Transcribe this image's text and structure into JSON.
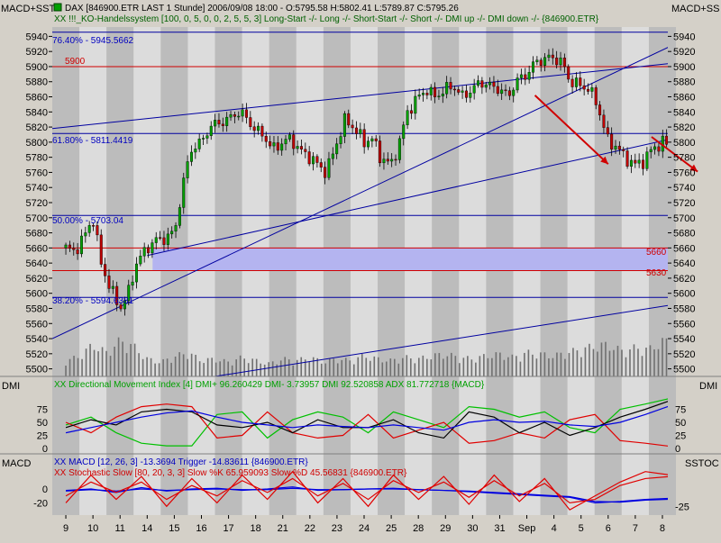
{
  "window": {
    "corner_left_top": "MACD+SST",
    "corner_right_top": "MACD+SS",
    "icon": "green-square-icon",
    "header_line1": "DAX [846900.ETR LAST 1 Stunde] 2006/09/08 18:00 - O:5795.58 H:5802.41 L:5789.87 C:5795.26",
    "header_line2": "XX !!!_KO-Handelssystem [100, 0, 5, 0, 0, 2, 5, 5, 3] Long-Start -/- Long -/- Short-Start -/- Short -/- DMI up -/- DMI down -/- {846900.ETR}"
  },
  "panels": {
    "dmi": {
      "label_left": "DMI",
      "label_right": "DMI",
      "legend": "XX Directional Movement Index [4] DMI+ 96.260429 DMI- 3.73957 DMI 92.520858 ADX 81.772718 {MACD}"
    },
    "macd": {
      "label_left": "MACD",
      "label_right": "SSTOC",
      "legend1": "XX MACD [12, 26, 3] -13.3694 Trigger -14.83611 {846900.ETR}",
      "legend2": "XX Stochastic Slow [80, 20, 3, 3] Slow %K 65.959093 Slow %D 45.56831 {846900.ETR}"
    }
  },
  "annotations": {
    "fib_7640": "76.40% - 5945.5662",
    "fib_6180": "61.80% - 5811.4419",
    "fib_5000": "50.00% - 5703.04",
    "fib_3820": "38.20% - 5594.6381",
    "level_5900": "5900",
    "level_5660": "5660",
    "level_5630": "5630"
  },
  "colors": {
    "background": "#d4d0c8",
    "stripe_dark": "#bcbcbc",
    "stripe_light": "#dcdcdc",
    "up_candle": "#00a000",
    "down_candle": "#c00000",
    "trend_line": "#0000a0",
    "fib_text": "#0000c0",
    "red_line": "#d00000",
    "zone_fill": "#b4b4f0",
    "dmi_plus": "#00c000",
    "dmi_minus": "#e00000",
    "adx": "#0000e0",
    "dmi_line": "#000000",
    "macd": "#0000e0",
    "stoch": "#e00000"
  },
  "chart_data": [
    {
      "type": "candlestick",
      "title": "DAX [846900.ETR LAST 1 Stunde]",
      "ylim": [
        5490,
        5950
      ],
      "y_ticks": [
        5940,
        5920,
        5900,
        5880,
        5860,
        5840,
        5820,
        5800,
        5780,
        5760,
        5740,
        5720,
        5700,
        5680,
        5660,
        5640,
        5620,
        5600,
        5580,
        5560,
        5540,
        5520,
        5500
      ],
      "x_tick_labels": [
        "9",
        "10",
        "11",
        "14",
        "15",
        "16",
        "17",
        "18",
        "21",
        "22",
        "23",
        "24",
        "25",
        "28",
        "29",
        "30",
        "31",
        "Sep",
        "4",
        "5",
        "6",
        "7",
        "8"
      ],
      "close_path": [
        [
          0,
          5660
        ],
        [
          0.3,
          5655
        ],
        [
          0.6,
          5670
        ],
        [
          1.0,
          5700
        ],
        [
          1.3,
          5640
        ],
        [
          1.6,
          5610
        ],
        [
          2.0,
          5580
        ],
        [
          2.3,
          5600
        ],
        [
          2.6,
          5640
        ],
        [
          3.0,
          5660
        ],
        [
          3.3,
          5670
        ],
        [
          3.6,
          5672
        ],
        [
          4.0,
          5680
        ],
        [
          4.3,
          5740
        ],
        [
          4.6,
          5790
        ],
        [
          5.0,
          5800
        ],
        [
          5.3,
          5820
        ],
        [
          5.6,
          5825
        ],
        [
          6.0,
          5830
        ],
        [
          6.3,
          5840
        ],
        [
          6.6,
          5835
        ],
        [
          7.0,
          5815
        ],
        [
          7.3,
          5810
        ],
        [
          7.6,
          5790
        ],
        [
          8.0,
          5800
        ],
        [
          8.3,
          5805
        ],
        [
          8.6,
          5790
        ],
        [
          9.0,
          5780
        ],
        [
          9.3,
          5770
        ],
        [
          9.6,
          5760
        ],
        [
          10.0,
          5800
        ],
        [
          10.3,
          5830
        ],
        [
          10.6,
          5820
        ],
        [
          11.0,
          5800
        ],
        [
          11.3,
          5805
        ],
        [
          11.6,
          5780
        ],
        [
          12.0,
          5770
        ],
        [
          12.3,
          5800
        ],
        [
          12.6,
          5840
        ],
        [
          13.0,
          5860
        ],
        [
          13.3,
          5870
        ],
        [
          13.6,
          5860
        ],
        [
          14.0,
          5870
        ],
        [
          14.3,
          5875
        ],
        [
          14.6,
          5860
        ],
        [
          15.0,
          5870
        ],
        [
          15.3,
          5880
        ],
        [
          15.6,
          5875
        ],
        [
          16.0,
          5870
        ],
        [
          16.3,
          5860
        ],
        [
          16.6,
          5880
        ],
        [
          17.0,
          5890
        ],
        [
          17.3,
          5905
        ],
        [
          17.6,
          5910
        ],
        [
          18.0,
          5912
        ],
        [
          18.3,
          5905
        ],
        [
          18.6,
          5880
        ],
        [
          19.0,
          5875
        ],
        [
          19.3,
          5870
        ],
        [
          19.6,
          5850
        ],
        [
          20.0,
          5800
        ],
        [
          20.3,
          5795
        ],
        [
          20.6,
          5780
        ],
        [
          21.0,
          5770
        ],
        [
          21.3,
          5775
        ],
        [
          21.6,
          5790
        ],
        [
          22.0,
          5800
        ],
        [
          22.3,
          5795
        ]
      ],
      "volume_path": [
        [
          0,
          20
        ],
        [
          0.5,
          25
        ],
        [
          1.0,
          40
        ],
        [
          1.5,
          30
        ],
        [
          2.0,
          45
        ],
        [
          2.5,
          38
        ],
        [
          3.0,
          22
        ],
        [
          3.5,
          18
        ],
        [
          4.0,
          25
        ],
        [
          4.5,
          30
        ],
        [
          5.0,
          20
        ],
        [
          5.5,
          22
        ],
        [
          6.0,
          18
        ],
        [
          6.5,
          24
        ],
        [
          7.0,
          20
        ],
        [
          7.5,
          16
        ],
        [
          8.0,
          22
        ],
        [
          8.5,
          20
        ],
        [
          9.0,
          24
        ],
        [
          9.5,
          18
        ],
        [
          10.0,
          22
        ],
        [
          10.5,
          20
        ],
        [
          11.0,
          26
        ],
        [
          11.5,
          22
        ],
        [
          12.0,
          20
        ],
        [
          12.5,
          24
        ],
        [
          13.0,
          22
        ],
        [
          13.5,
          26
        ],
        [
          14.0,
          28
        ],
        [
          14.5,
          24
        ],
        [
          15.0,
          22
        ],
        [
          15.5,
          26
        ],
        [
          16.0,
          28
        ],
        [
          16.5,
          24
        ],
        [
          17.0,
          30
        ],
        [
          17.5,
          28
        ],
        [
          18.0,
          26
        ],
        [
          18.5,
          30
        ],
        [
          19.0,
          34
        ],
        [
          19.5,
          38
        ],
        [
          20.0,
          40
        ],
        [
          20.5,
          32
        ],
        [
          21.0,
          36
        ],
        [
          21.5,
          34
        ],
        [
          22.0,
          44
        ]
      ],
      "horizontal_lines": [
        {
          "value": 5945.5662,
          "color": "blue"
        },
        {
          "value": 5900,
          "color": "red"
        },
        {
          "value": 5811.4419,
          "color": "blue"
        },
        {
          "value": 5703.04,
          "color": "blue"
        },
        {
          "value": 5660,
          "color": "red"
        },
        {
          "value": 5630,
          "color": "red"
        },
        {
          "value": 5594.6381,
          "color": "blue"
        }
      ],
      "zone": [
        5630,
        5660
      ],
      "trend_lines": [
        {
          "from": [
            0,
            5540
          ],
          "to": [
            23.3,
            5944
          ]
        },
        {
          "from": [
            0,
            5818
          ],
          "to": [
            23.3,
            5908
          ]
        },
        {
          "from": [
            3.5,
            5650
          ],
          "to": [
            23.3,
            5812
          ]
        },
        {
          "from": [
            6,
            5490
          ],
          "to": [
            23.3,
            5590
          ]
        }
      ],
      "arrows": [
        {
          "from": [
            17.3,
            5862
          ],
          "to": [
            20.0,
            5771
          ]
        },
        {
          "from": [
            21.6,
            5807
          ],
          "to": [
            23.3,
            5761
          ]
        }
      ]
    },
    {
      "type": "line",
      "title": "XX Directional Movement Index [4]",
      "ylim": [
        0,
        100
      ],
      "y_ticks": [
        75,
        50,
        25,
        0
      ],
      "series": [
        {
          "name": "DMI+",
          "values": [
            45,
            60,
            30,
            10,
            5,
            5,
            65,
            70,
            20,
            55,
            70,
            60,
            30,
            70,
            55,
            40,
            80,
            75,
            60,
            70,
            40,
            30,
            75,
            85,
            96
          ]
        },
        {
          "name": "DMI-",
          "values": [
            50,
            30,
            60,
            80,
            85,
            80,
            20,
            25,
            70,
            30,
            20,
            25,
            65,
            20,
            35,
            50,
            10,
            15,
            30,
            20,
            55,
            65,
            15,
            10,
            4
          ]
        },
        {
          "name": "DMI",
          "values": [
            40,
            55,
            45,
            70,
            75,
            70,
            45,
            40,
            50,
            30,
            55,
            40,
            40,
            55,
            30,
            20,
            70,
            60,
            30,
            50,
            25,
            40,
            60,
            75,
            92
          ]
        },
        {
          "name": "ADX",
          "values": [
            30,
            40,
            50,
            60,
            68,
            72,
            60,
            50,
            45,
            40,
            45,
            42,
            40,
            45,
            40,
            35,
            50,
            55,
            50,
            52,
            45,
            42,
            50,
            65,
            82
          ]
        }
      ]
    },
    {
      "type": "line",
      "title": "XX MACD [12, 26, 3]",
      "ylim": [
        -35,
        35
      ],
      "y_ticks_left": [
        0,
        -20
      ],
      "y_ticks_right": [
        -25
      ],
      "series": [
        {
          "name": "MACD",
          "values": [
            -2,
            0,
            -5,
            2,
            -3,
            0,
            1,
            -2,
            0,
            3,
            -2,
            -1,
            0,
            1,
            -1,
            -2,
            -4,
            -6,
            -8,
            -10,
            -12,
            -20,
            -18,
            -15,
            -13.4
          ]
        },
        {
          "name": "Trigger",
          "values": [
            -3,
            -1,
            -3,
            0,
            -2,
            -1,
            0,
            -1,
            -1,
            1,
            -1,
            -1,
            0,
            0,
            -1,
            -2,
            -3,
            -5,
            -7,
            -9,
            -11,
            -18,
            -19,
            -16,
            -14.8
          ]
        },
        {
          "name": "Slow %K",
          "values": [
            -20,
            20,
            -15,
            18,
            -25,
            15,
            -20,
            20,
            -15,
            25,
            -20,
            15,
            -25,
            20,
            -15,
            18,
            -22,
            20,
            -18,
            15,
            -30,
            -10,
            10,
            25,
            20
          ]
        },
        {
          "name": "Slow %D",
          "values": [
            -10,
            10,
            -5,
            10,
            -15,
            5,
            -10,
            12,
            -5,
            15,
            -10,
            8,
            -15,
            12,
            -5,
            10,
            -12,
            12,
            -10,
            8,
            -20,
            -15,
            5,
            15,
            18
          ]
        }
      ]
    }
  ]
}
